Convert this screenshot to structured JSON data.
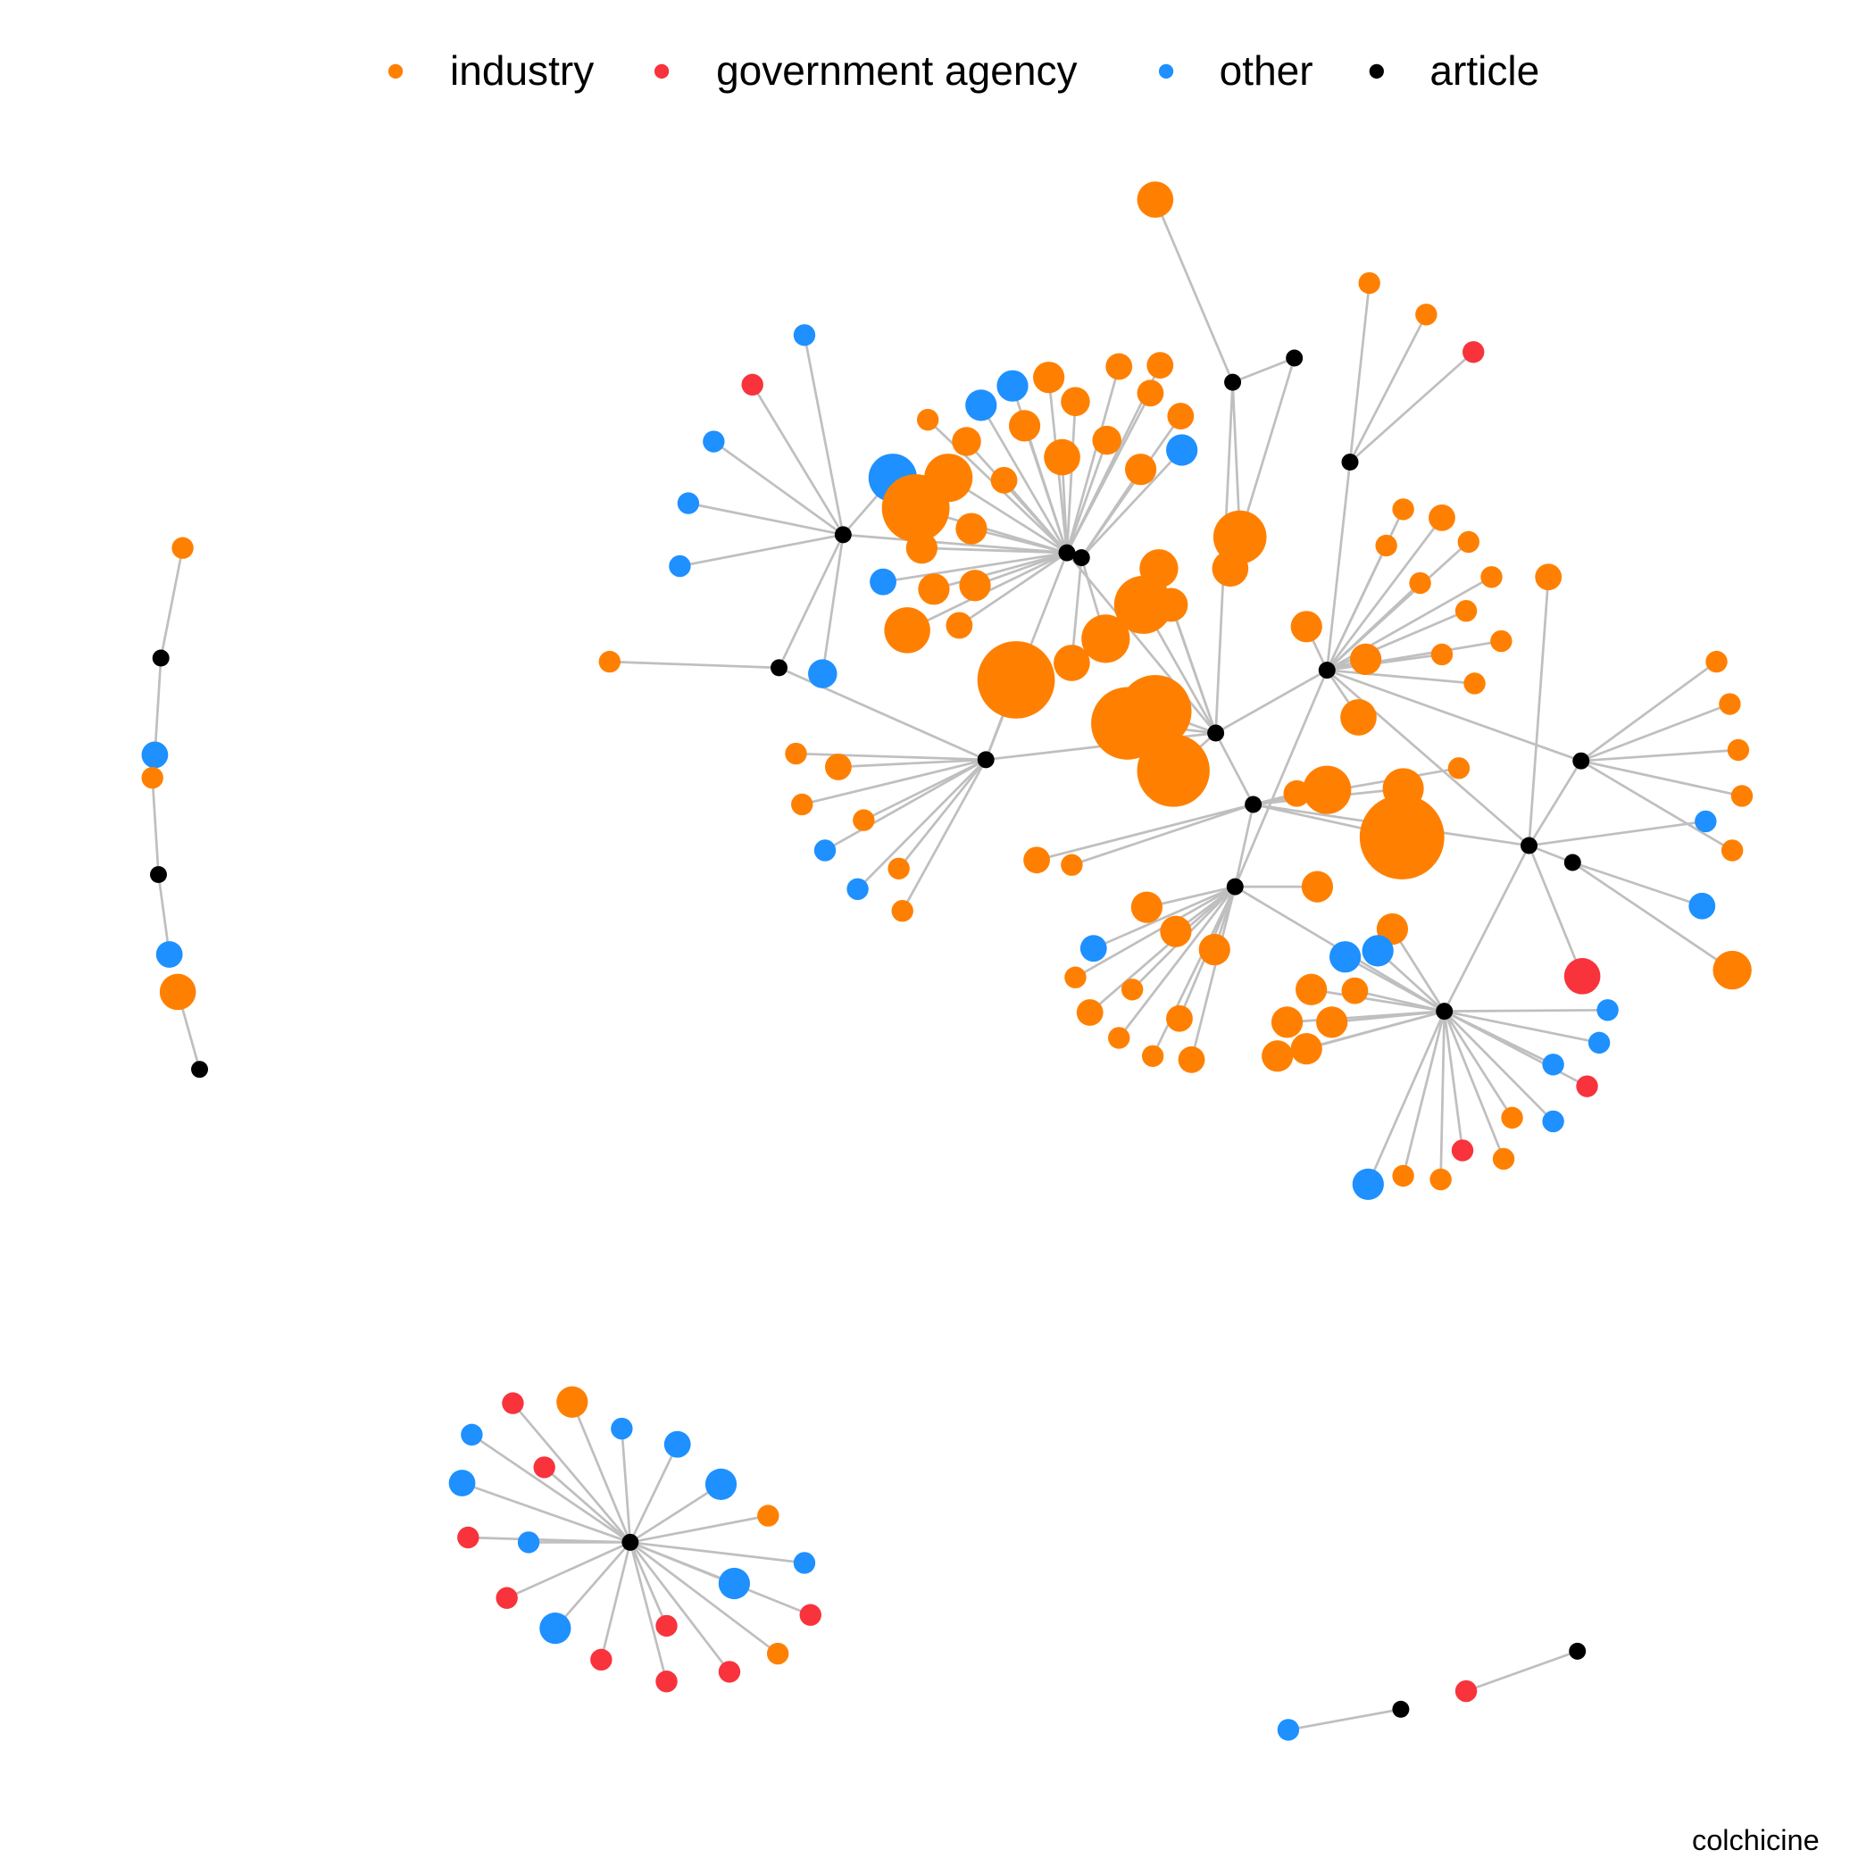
{
  "legend": {
    "items": [
      {
        "label": "industry",
        "color": "#FF8000"
      },
      {
        "label": "government agency",
        "color": "#F8333C"
      },
      {
        "label": "other",
        "color": "#1E90FF"
      },
      {
        "label": "article",
        "color": "#000000"
      }
    ]
  },
  "caption": "colchicine"
}
